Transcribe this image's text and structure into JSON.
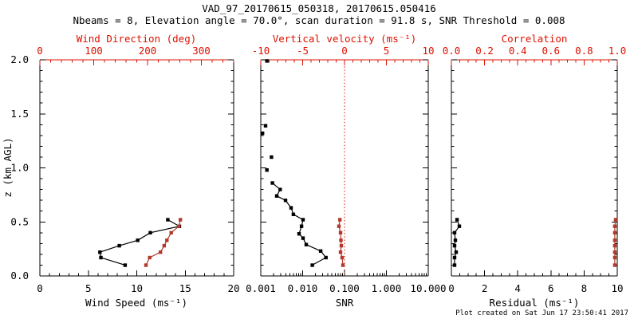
{
  "header": {
    "title": "VAD_97_20170615_050318, 20170615.050416",
    "subtitle": "Nbeams = 8, Elevation angle = 70.0°, scan duration = 91.8 s, SNR Threshold = 0.008"
  },
  "footer": {
    "created": "Plot created on Sat Jun 17 23:50:41 2017"
  },
  "colors": {
    "axis_red": "#dd1100",
    "data_red": "#b2392b",
    "black": "#000000",
    "background": "#ffffff"
  },
  "y_axis": {
    "title": "z (km AGL)",
    "range": [
      0.0,
      2.0
    ],
    "ticks": [
      0.0,
      0.5,
      1.0,
      1.5,
      2.0
    ],
    "tick_labels": [
      "0.0",
      "0.5",
      "1.0",
      "1.5",
      "2.0"
    ],
    "minor_step": 0.1
  },
  "chart_data": [
    {
      "type": "line",
      "panel": "wind",
      "grid": false,
      "legend": "none",
      "bottom_axis": {
        "title": "Wind Speed (ms⁻¹)",
        "scale": "linear",
        "range": [
          0,
          20
        ],
        "ticks": [
          0,
          5,
          10,
          15,
          20
        ],
        "tick_labels": [
          "0",
          "5",
          "10",
          "15",
          "20"
        ],
        "minor_step": 1,
        "color": "black"
      },
      "top_axis": {
        "title": "Wind Direction (deg)",
        "scale": "linear",
        "range": [
          0,
          360
        ],
        "ticks": [
          0,
          100,
          200,
          300
        ],
        "tick_labels": [
          "0",
          "100",
          "200",
          "300"
        ],
        "minor_step": 20,
        "color": "red"
      },
      "series": [
        {
          "name": "wind-speed",
          "axis": "bottom",
          "color": "black",
          "connected": true,
          "z": [
            0.1,
            0.17,
            0.22,
            0.28,
            0.33,
            0.4,
            0.46,
            0.52
          ],
          "values": [
            8.8,
            6.3,
            6.2,
            8.2,
            10.1,
            11.4,
            14.4,
            13.2
          ]
        },
        {
          "name": "wind-direction",
          "axis": "top",
          "color": "red",
          "connected": true,
          "z": [
            0.1,
            0.17,
            0.22,
            0.28,
            0.33,
            0.4,
            0.46,
            0.52
          ],
          "values": [
            197,
            204,
            224,
            231,
            236,
            244,
            258,
            261
          ]
        }
      ]
    },
    {
      "type": "line",
      "panel": "snr",
      "grid": false,
      "legend": "none",
      "bottom_axis": {
        "title": "SNR",
        "scale": "log",
        "range": [
          0.001,
          10.0
        ],
        "ticks": [
          0.001,
          0.01,
          0.1,
          1.0,
          10.0
        ],
        "tick_labels": [
          "0.001",
          "0.010",
          "0.100",
          "1.000",
          "10.000"
        ],
        "color": "black"
      },
      "top_axis": {
        "title": "Vertical velocity (ms⁻¹)",
        "scale": "linear",
        "range": [
          -10,
          10
        ],
        "ticks": [
          -10,
          -5,
          0,
          5,
          10
        ],
        "tick_labels": [
          "-10",
          "-5",
          "0",
          "5",
          "10"
        ],
        "minor_step": 1,
        "color": "red"
      },
      "ref_line": {
        "axis": "top",
        "value": 0,
        "style": "dotted",
        "color": "red"
      },
      "series": [
        {
          "name": "snr-profile-upper",
          "axis": "bottom",
          "color": "black",
          "connected": false,
          "z": [
            1.99,
            1.39,
            1.32,
            1.1,
            0.98
          ],
          "values": [
            0.0014,
            0.0013,
            0.0011,
            0.0018,
            0.0014
          ]
        },
        {
          "name": "snr-profile",
          "axis": "bottom",
          "color": "black",
          "connected": true,
          "z": [
            0.86,
            0.8,
            0.74,
            0.7,
            0.63,
            0.57,
            0.52,
            0.46,
            0.39,
            0.35,
            0.29,
            0.23,
            0.17,
            0.1
          ],
          "values": [
            0.0019,
            0.0029,
            0.0024,
            0.0039,
            0.0053,
            0.006,
            0.0102,
            0.0094,
            0.0082,
            0.0102,
            0.0122,
            0.027,
            0.036,
            0.017
          ]
        },
        {
          "name": "vertical-velocity",
          "axis": "top",
          "color": "red",
          "connected": true,
          "z": [
            0.1,
            0.17,
            0.22,
            0.28,
            0.33,
            0.4,
            0.46,
            0.52
          ],
          "values": [
            -0.19,
            -0.29,
            -0.48,
            -0.38,
            -0.43,
            -0.48,
            -0.67,
            -0.55
          ]
        }
      ]
    },
    {
      "type": "line",
      "panel": "residual",
      "grid": false,
      "legend": "none",
      "bottom_axis": {
        "title": "Residual (ms⁻¹)",
        "scale": "linear",
        "range": [
          0,
          10
        ],
        "ticks": [
          0,
          2,
          4,
          6,
          8,
          10
        ],
        "tick_labels": [
          "0",
          "2",
          "4",
          "6",
          "8",
          "10"
        ],
        "minor_step": 0.5,
        "color": "black"
      },
      "top_axis": {
        "title": "Correlation",
        "scale": "linear",
        "range": [
          0.0,
          1.0
        ],
        "ticks": [
          0.0,
          0.2,
          0.4,
          0.6,
          0.8,
          1.0
        ],
        "tick_labels": [
          "0.0",
          "0.2",
          "0.4",
          "0.6",
          "0.8",
          "1.0"
        ],
        "minor_step": 0.05,
        "color": "red"
      },
      "series": [
        {
          "name": "residual",
          "axis": "bottom",
          "color": "black",
          "connected": true,
          "z": [
            0.1,
            0.17,
            0.22,
            0.28,
            0.33,
            0.4,
            0.46,
            0.52
          ],
          "values": [
            0.19,
            0.19,
            0.29,
            0.19,
            0.24,
            0.19,
            0.48,
            0.34
          ]
        },
        {
          "name": "correlation",
          "axis": "top",
          "color": "red",
          "connected": true,
          "z": [
            0.1,
            0.17,
            0.22,
            0.28,
            0.33,
            0.4,
            0.46,
            0.52
          ],
          "values": [
            0.985,
            0.985,
            0.985,
            0.985,
            0.985,
            0.985,
            0.985,
            0.99
          ]
        }
      ]
    }
  ]
}
